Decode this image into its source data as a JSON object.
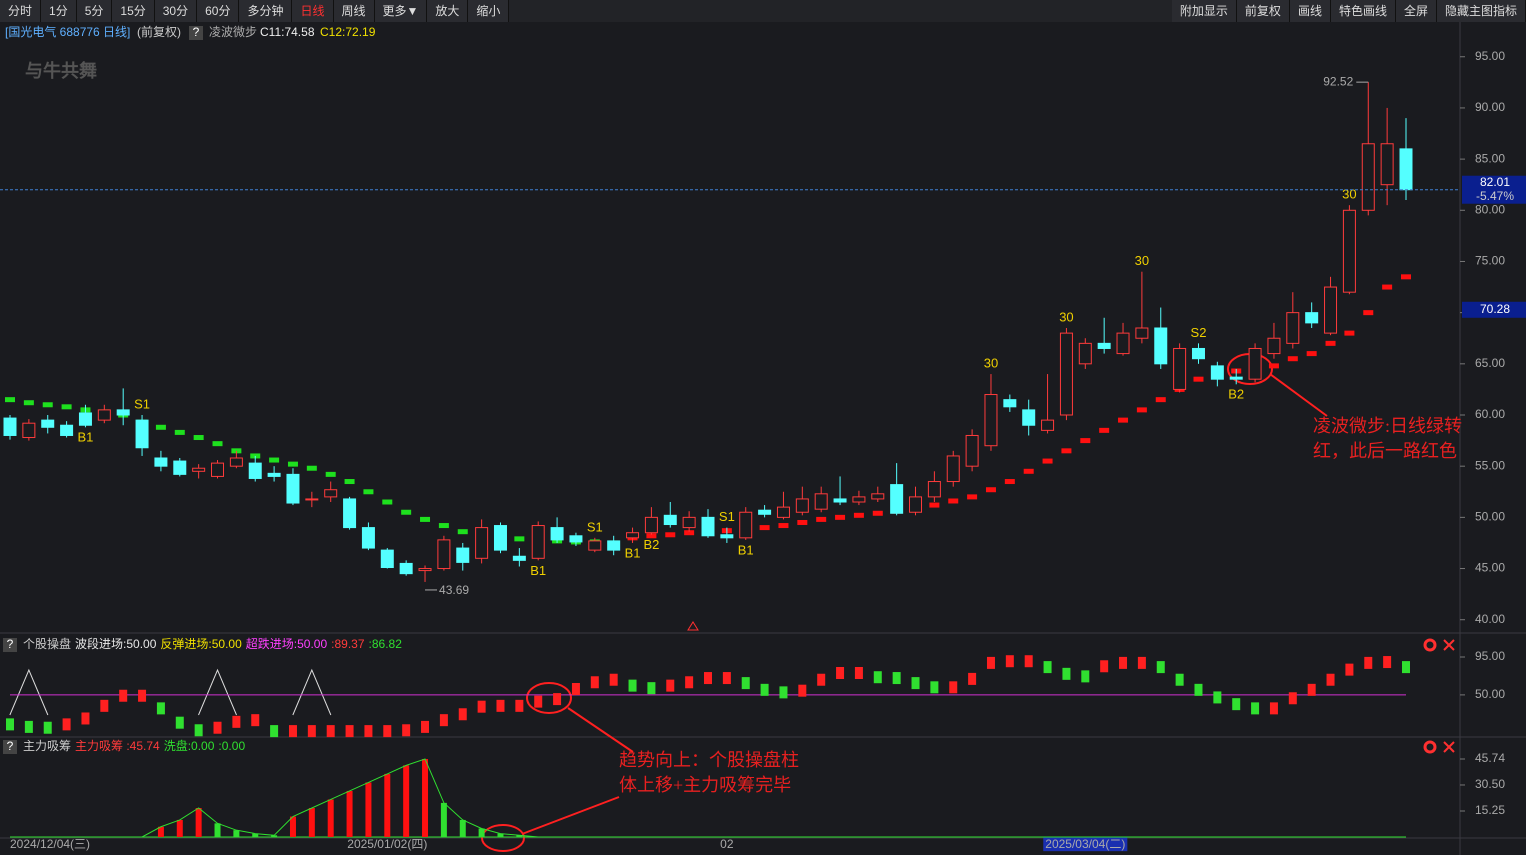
{
  "toolbar": {
    "left": [
      "分时",
      "1分",
      "5分",
      "15分",
      "30分",
      "60分",
      "多分钟",
      "日线",
      "周线",
      "更多▼",
      "放大",
      "缩小"
    ],
    "right": [
      "附加显示",
      "前复权",
      "画线",
      "特色画线",
      "全屏",
      "隐藏主图指标"
    ],
    "active": 7
  },
  "header": {
    "stock": "[国光电气 688776 日线]",
    "adjust": "(前复权)",
    "help": "?",
    "indicator": "凌波微步",
    "c11": "C11:74.58",
    "c12": "C12:72.19",
    "logo": "与牛共舞"
  },
  "annotations": [
    "凌波微步:日线绿转",
    "红，此后一路红色",
    "趋势向上：个股操盘柱",
    "体上移+主力吸筹完毕"
  ],
  "chart_data": [
    {
      "type": "candlestick",
      "categories": [
        "2024/12/04(三)",
        null,
        null,
        null,
        null,
        null,
        null,
        null,
        null,
        null,
        null,
        null,
        null,
        null,
        null,
        null,
        null,
        null,
        null,
        null,
        "2025/01/02(四)",
        null,
        null,
        null,
        null,
        null,
        null,
        null,
        null,
        null,
        null,
        null,
        null,
        null,
        null,
        null,
        null,
        null,
        "02",
        null,
        null,
        null,
        null,
        null,
        null,
        null,
        null,
        null,
        null,
        null,
        null,
        null,
        null,
        null,
        null,
        null,
        null,
        "2025/03/04(二)",
        null,
        null,
        null,
        null,
        null,
        null,
        null,
        null,
        null,
        null,
        null,
        null,
        null,
        null,
        null,
        null,
        null
      ],
      "x_highlight": 57,
      "open": [
        59.7,
        57.8,
        59.5,
        59.0,
        60.2,
        59.5,
        60.5,
        59.5,
        55.8,
        55.5,
        54.5,
        54.0,
        55.0,
        55.3,
        54.3,
        54.2,
        51.8,
        52.0,
        51.8,
        49.0,
        46.8,
        45.5,
        44.8,
        45.0,
        47.0,
        46.0,
        49.2,
        46.2,
        46.0,
        49.0,
        48.2,
        46.8,
        47.7,
        48.0,
        48.5,
        50.2,
        49.0,
        50.0,
        48.3,
        48.0,
        50.7,
        50.0,
        50.5,
        50.8,
        51.8,
        51.5,
        51.8,
        53.2,
        50.5,
        52.0,
        53.5,
        55.0,
        57.0,
        61.5,
        60.5,
        58.5,
        60.0,
        65.0,
        67.0,
        66.0,
        67.5,
        68.5,
        62.5,
        66.5,
        64.8,
        63.7,
        63.5,
        66.0,
        67.0,
        70.0,
        68.0,
        72.0,
        80.0,
        82.5,
        86.0
      ],
      "high": [
        60.0,
        59.6,
        60.0,
        59.4,
        61.0,
        61.0,
        62.6,
        60.0,
        56.5,
        55.8,
        55.2,
        55.6,
        56.5,
        56.0,
        55.0,
        54.8,
        52.5,
        53.5,
        52.0,
        49.5,
        47.0,
        45.8,
        45.3,
        48.2,
        47.5,
        49.8,
        49.5,
        47.0,
        49.6,
        50.0,
        48.5,
        48.0,
        48.2,
        49.0,
        51.0,
        51.5,
        50.6,
        50.8,
        49.0,
        51.0,
        51.2,
        52.5,
        53.0,
        53.0,
        54.0,
        52.6,
        53.0,
        55.3,
        53.0,
        54.5,
        56.5,
        58.6,
        64.0,
        62.0,
        61.5,
        64.0,
        68.5,
        67.5,
        69.5,
        69.0,
        74.0,
        70.5,
        67.0,
        67.0,
        65.2,
        64.5,
        67.0,
        69.0,
        72.0,
        71.0,
        73.5,
        80.5,
        92.52,
        90.0,
        89.0
      ],
      "low": [
        57.6,
        57.5,
        58.2,
        57.8,
        58.8,
        59.2,
        59.0,
        56.0,
        54.5,
        54.0,
        53.8,
        53.8,
        54.8,
        53.5,
        53.5,
        51.2,
        51.0,
        51.5,
        48.8,
        46.8,
        45.0,
        44.3,
        43.69,
        44.8,
        44.8,
        45.5,
        46.5,
        45.2,
        45.8,
        47.5,
        47.2,
        46.6,
        46.3,
        47.5,
        48.3,
        49.0,
        48.6,
        48.0,
        47.5,
        47.8,
        50.0,
        49.8,
        50.2,
        50.5,
        51.2,
        51.2,
        51.5,
        50.2,
        50.2,
        51.5,
        53.0,
        54.5,
        56.5,
        60.3,
        58.0,
        58.2,
        59.5,
        64.5,
        66.0,
        65.8,
        67.0,
        64.5,
        62.2,
        65.0,
        62.8,
        63.0,
        63.2,
        65.5,
        66.5,
        68.5,
        67.8,
        71.8,
        79.5,
        80.5,
        81.0
      ],
      "close": [
        58.0,
        59.2,
        58.8,
        58.0,
        59.0,
        60.5,
        60.0,
        56.8,
        55.0,
        54.2,
        54.8,
        55.3,
        55.8,
        53.8,
        54.0,
        51.4,
        51.8,
        52.7,
        49.0,
        47.0,
        45.1,
        44.5,
        45.0,
        47.8,
        45.6,
        49.0,
        46.8,
        45.8,
        49.2,
        47.8,
        47.6,
        47.7,
        46.8,
        48.5,
        50.0,
        49.3,
        50.0,
        48.2,
        48.0,
        50.5,
        50.3,
        51.0,
        51.8,
        52.3,
        51.5,
        52.0,
        52.3,
        50.4,
        52.0,
        53.5,
        56.0,
        58.0,
        62.0,
        60.8,
        59.0,
        59.5,
        68.0,
        67.0,
        66.5,
        68.0,
        68.5,
        65.0,
        66.5,
        65.5,
        63.5,
        63.5,
        66.5,
        67.5,
        70.0,
        69.0,
        72.5,
        80.0,
        86.5,
        86.5,
        82.01
      ],
      "up_color": "#ff3b3b",
      "down_color": "#54ffff",
      "step_down": [
        61.5,
        61.2,
        61.0,
        60.8,
        60.5,
        60.3,
        60.0,
        59.3,
        58.8,
        58.3,
        57.8,
        57.2,
        56.5,
        56.0,
        55.6,
        55.2,
        54.8,
        54.2,
        53.5,
        52.5,
        51.5,
        50.5,
        49.8,
        49.2,
        48.6,
        48.3,
        48.0,
        47.9,
        47.8,
        47.7,
        47.6,
        47.6,
        47.5,
        null,
        null,
        null,
        null,
        null,
        null,
        null,
        null,
        null,
        null,
        null,
        null,
        null,
        null,
        null,
        null,
        null,
        null,
        null,
        null,
        null,
        null,
        null,
        null,
        null,
        null,
        null,
        null,
        null,
        null,
        null,
        null,
        null,
        null,
        null,
        null,
        null,
        null,
        null,
        null,
        null,
        null
      ],
      "step_up": [
        null,
        null,
        null,
        null,
        null,
        null,
        null,
        null,
        null,
        null,
        null,
        null,
        null,
        null,
        null,
        null,
        null,
        null,
        null,
        null,
        null,
        null,
        null,
        null,
        null,
        null,
        null,
        null,
        null,
        null,
        null,
        null,
        null,
        48.0,
        48.2,
        48.3,
        48.5,
        48.6,
        48.7,
        48.8,
        49.0,
        49.2,
        49.5,
        49.8,
        50.0,
        50.2,
        50.4,
        50.6,
        50.9,
        51.2,
        51.6,
        52.0,
        52.7,
        53.5,
        54.5,
        55.5,
        56.5,
        57.5,
        58.5,
        59.5,
        60.5,
        61.5,
        62.5,
        63.5,
        64.0,
        64.3,
        64.6,
        64.8,
        65.5,
        66.0,
        67.0,
        68.0,
        70.0,
        72.5,
        73.5
      ],
      "step_down_color": "#1ee01e",
      "step_up_color": "#ff1010",
      "signals": [
        {
          "index": 4,
          "text": "B1",
          "pos": "below"
        },
        {
          "index": 7,
          "text": "S1",
          "pos": "above"
        },
        {
          "index": 28,
          "text": "B1",
          "pos": "below"
        },
        {
          "index": 31,
          "text": "S1",
          "pos": "above"
        },
        {
          "index": 33,
          "text": "B1",
          "pos": "below"
        },
        {
          "index": 34,
          "text": "B2",
          "pos": "below"
        },
        {
          "index": 38,
          "text": "S1",
          "pos": "above"
        },
        {
          "index": 39,
          "text": "B1",
          "pos": "below"
        },
        {
          "index": 52,
          "text": "30",
          "pos": "above"
        },
        {
          "index": 56,
          "text": "30",
          "pos": "above"
        },
        {
          "index": 60,
          "text": "30",
          "pos": "above"
        },
        {
          "index": 63,
          "text": "S2",
          "pos": "above"
        },
        {
          "index": 65,
          "text": "B2",
          "pos": "below"
        },
        {
          "index": 71,
          "text": "30",
          "pos": "above"
        }
      ],
      "max_index": 72,
      "min_index": 22,
      "change": "-5.47%",
      "tag_value": 70.28,
      "ylim": [
        38.8,
        98.2
      ],
      "yticks": [
        {
          "value": 40,
          "label": "40.00"
        },
        {
          "value": 45,
          "label": "45.00"
        },
        {
          "value": 50,
          "label": "50.00"
        },
        {
          "value": 55,
          "label": "55.00"
        },
        {
          "value": 60,
          "label": "60.00"
        },
        {
          "value": 65,
          "label": "65.00"
        },
        {
          "value": 70,
          "label": "70.00"
        },
        {
          "value": 75,
          "label": "75.00"
        },
        {
          "value": 80,
          "label": "80.00"
        },
        {
          "value": 85,
          "label": "85.00"
        },
        {
          "value": 90,
          "label": "90.00"
        },
        {
          "value": 95,
          "label": "95.00"
        }
      ]
    },
    {
      "type": "bar",
      "title": "个股操盘",
      "legend_texts": [
        "波段进场:50.00",
        "反弹进场:50.00",
        "超跌进场:50.00",
        ":89.37",
        ":86.82"
      ],
      "legend_colors": [
        "#e8e8e8",
        "#f0e000",
        "#ff40ff",
        "#ff3b3b",
        "#30e030"
      ],
      "values": [
        15,
        12,
        11,
        15,
        22,
        37,
        49,
        49,
        34,
        17,
        8,
        11,
        18,
        20,
        7,
        7,
        7,
        7,
        7,
        7,
        7,
        8,
        12,
        20,
        27,
        36,
        37,
        37,
        42,
        45,
        57,
        65,
        68,
        61,
        58,
        61,
        65,
        70,
        70,
        64,
        56,
        53,
        55,
        68,
        76,
        76,
        71,
        70,
        64,
        59,
        59,
        69,
        88,
        90,
        90,
        83,
        75,
        72,
        84,
        88,
        88,
        83,
        68,
        56,
        47,
        39,
        34,
        34,
        46,
        56,
        68,
        80,
        88,
        89,
        83
      ],
      "up_color": "#ff2020",
      "down_color": "#30e030",
      "reference_line": 50,
      "line_color": "#d030d0",
      "ylim": [
        0,
        95
      ],
      "yticks": [
        {
          "value": 95,
          "label": "95.00"
        },
        {
          "value": 50,
          "label": "50.00"
        }
      ]
    },
    {
      "type": "bar",
      "title": "主力吸筹",
      "legend_texts": [
        "主力吸筹 :45.74",
        "洗盘:0.00",
        ":0.00"
      ],
      "legend_colors": [
        "#ff3b3b",
        "#30e030",
        "#30e030"
      ],
      "values": [
        0,
        0,
        0,
        0,
        0,
        0,
        0,
        0,
        6,
        10,
        17,
        8,
        4,
        2,
        1,
        12,
        17,
        22,
        27,
        32,
        37,
        42,
        45.74,
        20,
        10,
        5,
        2,
        1,
        0,
        0,
        0,
        0,
        0,
        0,
        0,
        0,
        0,
        0,
        0,
        0,
        0,
        0,
        0,
        0,
        0,
        0,
        0,
        0,
        0,
        0,
        0,
        0,
        0,
        0,
        0,
        0,
        0,
        0,
        0,
        0,
        0,
        0,
        0,
        0,
        0,
        0,
        0,
        0,
        0,
        0,
        0,
        0,
        0,
        0,
        0
      ],
      "up_color": "#ff1010",
      "down_color": "#30e030",
      "line_color": "#30e030",
      "ylim": [
        0,
        55.7
      ],
      "yticks": [
        {
          "value": 45.74,
          "label": "45.74"
        },
        {
          "value": 30.5,
          "label": "30.50"
        },
        {
          "value": 15.25,
          "label": "15.25"
        }
      ]
    }
  ]
}
